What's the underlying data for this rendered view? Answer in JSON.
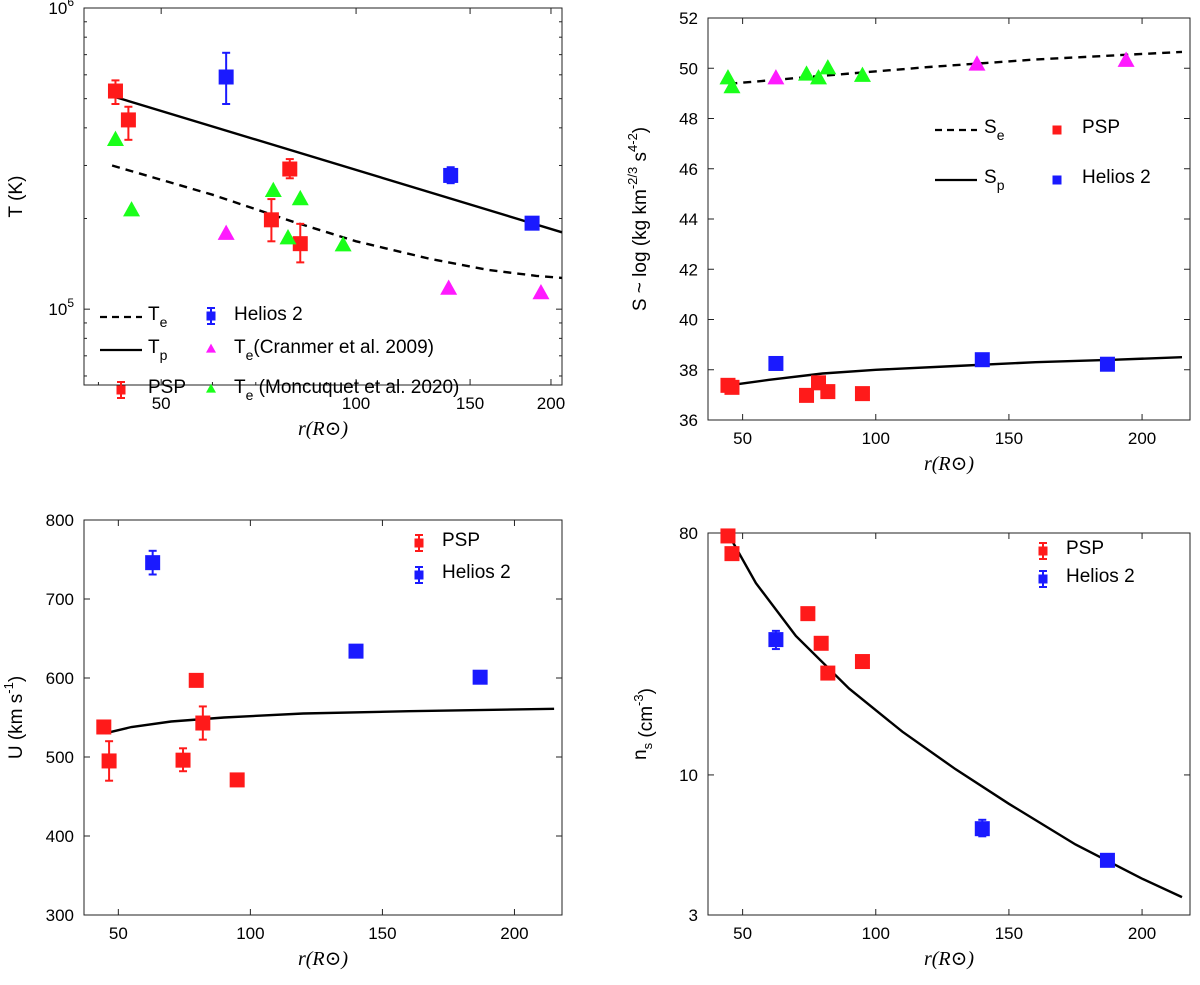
{
  "chart_data": [
    {
      "type": "scatter",
      "id": "temperature",
      "xlabel": "r(R⊙)",
      "ylabel": "T (K)",
      "xscale": "log",
      "yscale": "log",
      "xlim": [
        38,
        208
      ],
      "ylim": [
        56000,
        1000000
      ],
      "xticks": [
        {
          "v": 50,
          "label": "50"
        },
        {
          "v": 100,
          "label": "100"
        },
        {
          "v": 150,
          "label": "150"
        },
        {
          "v": 200,
          "label": "200"
        }
      ],
      "yticks": [
        {
          "v": 100000,
          "base": "10",
          "exp": "5"
        },
        {
          "v": 1000000,
          "base": "10",
          "exp": "6"
        }
      ],
      "legend_position": "bottom-left",
      "legend": [
        {
          "label": "T",
          "sub": "e",
          "style": "dashed"
        },
        {
          "label": "T",
          "sub": "p",
          "style": "solid"
        },
        {
          "label": "PSP",
          "style": "red-errorbar"
        },
        {
          "label": "Helios 2",
          "style": "blue-errorbar"
        },
        {
          "label": "T",
          "sub": "e",
          "suffix": "(Cranmer et al. 2009)",
          "style": "magenta-triangle"
        },
        {
          "label": "T",
          "sub": "e",
          "suffix": " (Moncuquet et al. 2020)",
          "style": "green-triangle"
        }
      ],
      "series": [
        {
          "name": "PSP",
          "marker": "square",
          "color": "#ff1a1a",
          "points": [
            {
              "x": 42.5,
              "y": 530000,
              "lo": 480000,
              "hi": 575000
            },
            {
              "x": 44.5,
              "y": 425000,
              "lo": 365000,
              "hi": 470000
            },
            {
              "x": 74,
              "y": 198000,
              "lo": 168000,
              "hi": 232000
            },
            {
              "x": 79,
              "y": 292000,
              "lo": 272000,
              "hi": 315000
            },
            {
              "x": 82,
              "y": 165000,
              "lo": 143000,
              "hi": 192000
            }
          ]
        },
        {
          "name": "Helios 2",
          "marker": "square",
          "color": "#1a1aff",
          "points": [
            {
              "x": 63,
              "y": 590000,
              "lo": 480000,
              "hi": 710000
            },
            {
              "x": 140,
              "y": 278000,
              "lo": 262000,
              "hi": 296000
            },
            {
              "x": 187,
              "y": 193000
            }
          ]
        },
        {
          "name": "Cranmer et al. 2009",
          "marker": "triangle",
          "color": "#ff1aff",
          "points": [
            {
              "x": 63,
              "y": 178000
            },
            {
              "x": 139,
              "y": 117000
            },
            {
              "x": 193,
              "y": 113000
            }
          ]
        },
        {
          "name": "Moncuquet et al. 2020",
          "marker": "triangle",
          "color": "#1aff1a",
          "points": [
            {
              "x": 42.5,
              "y": 365000
            },
            {
              "x": 45,
              "y": 213000
            },
            {
              "x": 74.5,
              "y": 247000
            },
            {
              "x": 78.5,
              "y": 172000
            },
            {
              "x": 82,
              "y": 232000
            },
            {
              "x": 95.5,
              "y": 163000
            }
          ]
        },
        {
          "name": "Te",
          "line": "dashed",
          "points": [
            [
              42,
              300000
            ],
            [
              60,
              240000
            ],
            [
              80,
              195000
            ],
            [
              100,
              168000
            ],
            [
              130,
              147000
            ],
            [
              160,
              135000
            ],
            [
              190,
              129000
            ],
            [
              208,
              127000
            ]
          ]
        },
        {
          "name": "Tp",
          "line": "solid",
          "points": [
            [
              42,
              510000
            ],
            [
              208,
              180000
            ]
          ]
        }
      ]
    },
    {
      "type": "scatter",
      "id": "entropy",
      "xlabel": "r(R⊙)",
      "ylabel": "S ~ log (kg",
      "ylabel_parts": {
        "base": "S ~ log (kg",
        "exp1": "-2/3",
        "mid": " km",
        "exp2": "4",
        "mid2": " s",
        "exp3": "-2",
        "end": ")"
      },
      "xlim": [
        37,
        218
      ],
      "ylim": [
        36,
        52
      ],
      "xticks": [
        {
          "v": 50,
          "label": "50"
        },
        {
          "v": 100,
          "label": "100"
        },
        {
          "v": 150,
          "label": "150"
        },
        {
          "v": 200,
          "label": "200"
        }
      ],
      "yticks": [
        {
          "v": 36,
          "label": "36"
        },
        {
          "v": 38,
          "label": "38"
        },
        {
          "v": 40,
          "label": "40"
        },
        {
          "v": 42,
          "label": "42"
        },
        {
          "v": 44,
          "label": "44"
        },
        {
          "v": 46,
          "label": "46"
        },
        {
          "v": 48,
          "label": "48"
        },
        {
          "v": 50,
          "label": "50"
        },
        {
          "v": 52,
          "label": "52"
        }
      ],
      "legend_position": "top-right",
      "legend": [
        {
          "label": "S",
          "sub": "e",
          "style": "dashed"
        },
        {
          "label": "PSP",
          "style": "red-square"
        },
        {
          "label": "S",
          "sub": "p",
          "style": "solid"
        },
        {
          "label": "Helios 2",
          "style": "blue-square"
        }
      ],
      "series": [
        {
          "name": "PSP",
          "marker": "square",
          "color": "#ff1a1a",
          "points": [
            {
              "x": 44.5,
              "y": 37.38
            },
            {
              "x": 46,
              "y": 37.3
            },
            {
              "x": 74,
              "y": 36.98
            },
            {
              "x": 78.5,
              "y": 37.48
            },
            {
              "x": 82,
              "y": 37.13
            },
            {
              "x": 95,
              "y": 37.05
            }
          ]
        },
        {
          "name": "Helios 2",
          "marker": "square",
          "color": "#1a1aff",
          "points": [
            {
              "x": 62.5,
              "y": 38.25
            },
            {
              "x": 140,
              "y": 38.4
            },
            {
              "x": 187,
              "y": 38.22
            }
          ]
        },
        {
          "name": "magenta",
          "marker": "triangle",
          "color": "#ff1aff",
          "points": [
            {
              "x": 62.5,
              "y": 49.6
            },
            {
              "x": 138,
              "y": 50.15
            },
            {
              "x": 194,
              "y": 50.3
            }
          ]
        },
        {
          "name": "green",
          "marker": "triangle",
          "color": "#1aff1a",
          "points": [
            {
              "x": 44.5,
              "y": 49.6
            },
            {
              "x": 46,
              "y": 49.25
            },
            {
              "x": 74,
              "y": 49.75
            },
            {
              "x": 78.5,
              "y": 49.6
            },
            {
              "x": 82,
              "y": 50.0
            },
            {
              "x": 95,
              "y": 49.7
            }
          ]
        },
        {
          "name": "Se",
          "line": "dashed",
          "points": [
            [
              45,
              49.38
            ],
            [
              80,
              49.7
            ],
            [
              120,
              50.05
            ],
            [
              160,
              50.35
            ],
            [
              215,
              50.65
            ]
          ]
        },
        {
          "name": "Sp",
          "line": "solid",
          "points": [
            [
              45,
              37.38
            ],
            [
              60,
              37.6
            ],
            [
              80,
              37.85
            ],
            [
              100,
              38.0
            ],
            [
              130,
              38.15
            ],
            [
              160,
              38.3
            ],
            [
              190,
              38.4
            ],
            [
              215,
              38.5
            ]
          ]
        }
      ]
    },
    {
      "type": "scatter",
      "id": "velocity",
      "xlabel": "r(R⊙)",
      "ylabel_parts": {
        "base": "U (km s",
        "exp1": "-1",
        "end": ")"
      },
      "xlim": [
        37,
        218
      ],
      "ylim": [
        300,
        800
      ],
      "xticks": [
        {
          "v": 50,
          "label": "50"
        },
        {
          "v": 100,
          "label": "100"
        },
        {
          "v": 150,
          "label": "150"
        },
        {
          "v": 200,
          "label": "200"
        }
      ],
      "yticks": [
        {
          "v": 300,
          "label": "300"
        },
        {
          "v": 400,
          "label": "400"
        },
        {
          "v": 500,
          "label": "500"
        },
        {
          "v": 600,
          "label": "600"
        },
        {
          "v": 700,
          "label": "700"
        },
        {
          "v": 800,
          "label": "800"
        }
      ],
      "legend_position": "top-right",
      "legend": [
        {
          "label": "PSP",
          "style": "red-errorbar"
        },
        {
          "label": "Helios 2",
          "style": "blue-errorbar"
        }
      ],
      "series": [
        {
          "name": "PSP",
          "marker": "square",
          "color": "#ff1a1a",
          "points": [
            {
              "x": 44.5,
              "y": 538
            },
            {
              "x": 46.5,
              "y": 495,
              "lo": 470,
              "hi": 520
            },
            {
              "x": 74.5,
              "y": 496,
              "lo": 482,
              "hi": 511
            },
            {
              "x": 79.5,
              "y": 597,
              "lo": 590,
              "hi": 604
            },
            {
              "x": 82,
              "y": 543,
              "lo": 522,
              "hi": 564
            },
            {
              "x": 95,
              "y": 471
            }
          ]
        },
        {
          "name": "Helios 2",
          "marker": "square",
          "color": "#1a1aff",
          "points": [
            {
              "x": 63,
              "y": 746,
              "lo": 731,
              "hi": 761
            },
            {
              "x": 140,
              "y": 634
            },
            {
              "x": 187,
              "y": 601
            }
          ]
        },
        {
          "name": "U",
          "line": "solid",
          "points": [
            [
              45,
              530
            ],
            [
              55,
              538
            ],
            [
              70,
              545
            ],
            [
              90,
              550
            ],
            [
              120,
              555
            ],
            [
              160,
              558
            ],
            [
              215,
              561
            ]
          ]
        }
      ]
    },
    {
      "type": "scatter",
      "id": "density",
      "xlabel": "r(R⊙)",
      "ylabel_parts": {
        "base": "n",
        "sub": "s",
        "mid": " (cm",
        "exp1": "-3",
        "end": ")"
      },
      "yscale": "log",
      "xlim": [
        37,
        218
      ],
      "ylim": [
        3,
        80
      ],
      "xticks": [
        {
          "v": 50,
          "label": "50"
        },
        {
          "v": 100,
          "label": "100"
        },
        {
          "v": 150,
          "label": "150"
        },
        {
          "v": 200,
          "label": "200"
        }
      ],
      "yticks": [
        {
          "v": 3,
          "label": "3"
        },
        {
          "v": 10,
          "label": "10"
        },
        {
          "v": 80,
          "label": "80"
        }
      ],
      "legend_position": "top-right",
      "legend": [
        {
          "label": "PSP",
          "style": "red-errorbar"
        },
        {
          "label": "Helios 2",
          "style": "blue-errorbar"
        }
      ],
      "series": [
        {
          "name": "PSP",
          "marker": "square",
          "color": "#ff1a1a",
          "points": [
            {
              "x": 44.5,
              "y": 78
            },
            {
              "x": 46,
              "y": 67
            },
            {
              "x": 74.5,
              "y": 40
            },
            {
              "x": 79.5,
              "y": 31
            },
            {
              "x": 82,
              "y": 24
            },
            {
              "x": 95,
              "y": 26.5
            }
          ]
        },
        {
          "name": "Helios 2",
          "marker": "square",
          "color": "#1a1aff",
          "points": [
            {
              "x": 62.5,
              "y": 32,
              "lo": 29.5,
              "hi": 34.5
            },
            {
              "x": 140,
              "y": 6.3,
              "lo": 5.9,
              "hi": 6.8
            },
            {
              "x": 187,
              "y": 4.8
            }
          ]
        },
        {
          "name": "n",
          "line": "solid",
          "points": [
            [
              45,
              78
            ],
            [
              55,
              52
            ],
            [
              70,
              33
            ],
            [
              90,
              21
            ],
            [
              110,
              14.5
            ],
            [
              130,
              10.5
            ],
            [
              150,
              7.8
            ],
            [
              175,
              5.5
            ],
            [
              200,
              4.1
            ],
            [
              215,
              3.5
            ]
          ]
        }
      ]
    }
  ]
}
